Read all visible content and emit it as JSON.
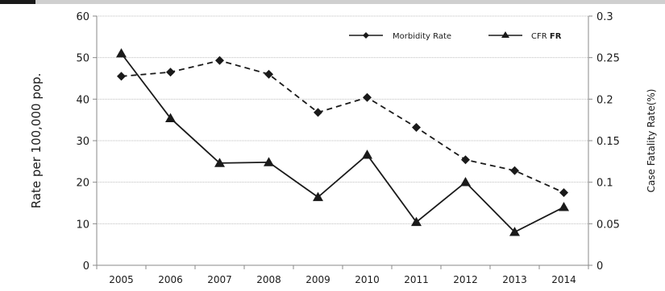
{
  "chart_data": {
    "type": "line",
    "categories": [
      "2005",
      "2006",
      "2007",
      "2008",
      "2009",
      "2010",
      "2011",
      "2012",
      "2013",
      "2014"
    ],
    "series": [
      {
        "name": "Morbidity Rate",
        "axis": "left",
        "line_style": "dashed",
        "marker": "diamond",
        "values": [
          45.5,
          46.5,
          49.3,
          46.0,
          36.8,
          40.4,
          33.2,
          25.4,
          22.8,
          17.5
        ]
      },
      {
        "name": "CFR",
        "name_bold_suffix": "FR",
        "axis": "right",
        "line_style": "solid",
        "marker": "triangle",
        "values": [
          0.255,
          0.177,
          0.123,
          0.124,
          0.082,
          0.133,
          0.052,
          0.1,
          0.04,
          0.07
        ]
      }
    ],
    "ylabel": "Rate per 100,000 pop.",
    "y2label": "Case Fatality Rate(%)",
    "ylim": [
      0,
      60
    ],
    "yticks": [
      "0",
      "10",
      "20",
      "30",
      "40",
      "50",
      "60"
    ],
    "y2lim": [
      0,
      0.3
    ],
    "y2ticks": [
      "0",
      "0.05",
      "0.1",
      "0.15",
      "0.2",
      "0.25",
      "0.3"
    ],
    "grid": true,
    "legend": "top-right",
    "colors": {
      "line": "#1a1a1a",
      "grid": "#bdbdbd",
      "axis": "#8a8a8a"
    }
  }
}
